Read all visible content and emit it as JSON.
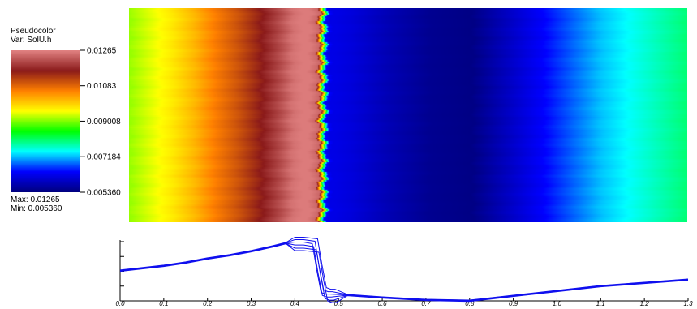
{
  "legend": {
    "title": "Pseudocolor",
    "variable": "Var: SolU.h",
    "max_text": "Max: 0.01265",
    "min_text": "Min: 0.005360",
    "tick_labels": [
      "0.01265",
      "0.01083",
      "0.009008",
      "0.007184",
      "0.005360"
    ],
    "tick_values": [
      0.01265,
      0.01083,
      0.009008,
      0.007184,
      0.00536
    ],
    "colormap": [
      "#000080",
      "#0000ff",
      "#00ffff",
      "#00ff00",
      "#ffff00",
      "#ff8000",
      "#8b1a1a",
      "#e08080"
    ]
  },
  "chart_data": [
    {
      "type": "heatmap",
      "title": "",
      "xlabel": "",
      "ylabel": "",
      "value_range": [
        0.00536,
        0.01265
      ],
      "profile_x": [
        0.0,
        0.05,
        0.1,
        0.15,
        0.2,
        0.25,
        0.3,
        0.35,
        0.38,
        0.4,
        0.42,
        0.44,
        0.45,
        0.46,
        0.47,
        0.48,
        0.52,
        0.6,
        0.7,
        0.8,
        0.9,
        1.0,
        1.1,
        1.2,
        1.3
      ],
      "profile_values": [
        0.0091,
        0.0094,
        0.0097,
        0.0101,
        0.0106,
        0.011,
        0.0115,
        0.0121,
        0.0125,
        0.0126,
        0.0126,
        0.0124,
        0.0092,
        0.0064,
        0.0062,
        0.0062,
        0.0061,
        0.0058,
        0.0055,
        0.0054,
        0.006,
        0.0066,
        0.0072,
        0.0076,
        0.008
      ]
    },
    {
      "type": "line",
      "title": "",
      "xlabel": "",
      "ylabel": "",
      "xlim": [
        0.0,
        1.3
      ],
      "x_tick_labels": [
        "0.0",
        "0.1",
        "0.2",
        "0.3",
        "0.4",
        "0.5",
        "0.6",
        "0.7",
        "0.8",
        "0.9",
        "1.0",
        "1.1",
        "1.2",
        "1.3"
      ],
      "series_color": "#1010ee",
      "x": [
        0.0,
        0.05,
        0.1,
        0.15,
        0.2,
        0.25,
        0.3,
        0.35,
        0.38,
        0.4,
        0.42,
        0.44,
        0.45,
        0.46,
        0.47,
        0.48,
        0.52,
        0.6,
        0.7,
        0.8,
        0.9,
        1.0,
        1.1,
        1.2,
        1.3
      ],
      "y": [
        0.0091,
        0.0094,
        0.0097,
        0.0101,
        0.0106,
        0.011,
        0.0115,
        0.0121,
        0.0125,
        0.0126,
        0.0126,
        0.0124,
        0.0092,
        0.0064,
        0.0062,
        0.0062,
        0.0061,
        0.0058,
        0.0055,
        0.0054,
        0.006,
        0.0066,
        0.0072,
        0.0076,
        0.008
      ]
    }
  ]
}
